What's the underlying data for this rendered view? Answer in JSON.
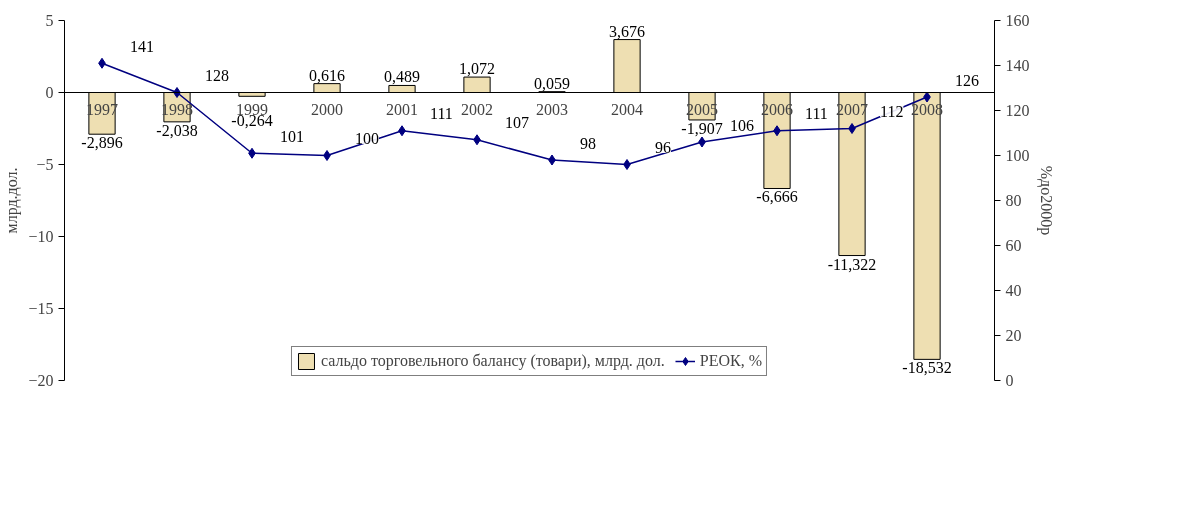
{
  "chart_data": {
    "type": "bar",
    "categories": [
      "1997",
      "1998",
      "1999",
      "2000",
      "2001",
      "2002",
      "2003",
      "2004",
      "2005",
      "2006",
      "2007",
      "2008"
    ],
    "ylabel": "млрд.дол.",
    "y2label": "%до2000р",
    "ylim": [
      -20,
      5
    ],
    "yticks": [
      -20,
      -15,
      -10,
      -5,
      0,
      5
    ],
    "y2lim": [
      0,
      160
    ],
    "y2ticks": [
      0,
      20,
      40,
      60,
      80,
      100,
      120,
      140,
      160
    ],
    "grid": false,
    "legend": "bottom",
    "series": [
      {
        "name": "сальдо торговельного балансу (товари), млрд. дол.",
        "color": "#eedfb2",
        "values": [
          -2.896,
          -2.038,
          -0.264,
          0.616,
          0.489,
          1.072,
          0.059,
          3.676,
          -1.907,
          -6.666,
          -11.322,
          -18.532
        ],
        "value_labels": [
          "-2,896",
          "-2,038",
          "-0,264",
          "0,616",
          "0,489",
          "1,072",
          "0,059",
          "3,676",
          "-1,907",
          "-6,666",
          "-11,322",
          "-18,532"
        ]
      },
      {
        "name": "РЕОК, %",
        "type": "line",
        "axis": "y2",
        "color": "#000080",
        "marker": "diamond",
        "values": [
          141,
          128,
          101,
          100,
          111,
          107,
          98,
          96,
          106,
          111,
          112,
          126
        ],
        "value_labels": [
          "141",
          "128",
          "101",
          "100",
          "111",
          "107",
          "98",
          "96",
          "106",
          "111",
          "112",
          "126"
        ]
      }
    ]
  }
}
